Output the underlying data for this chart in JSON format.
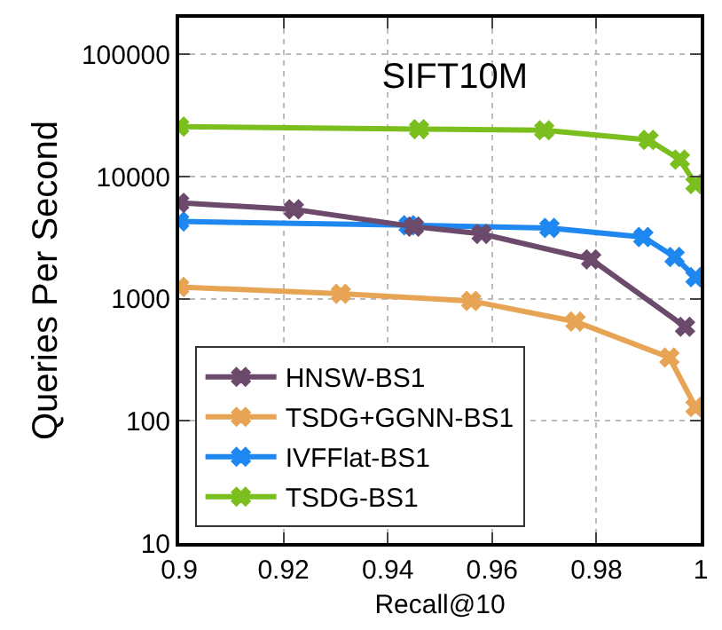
{
  "chart_data": {
    "type": "line",
    "title": "SIFT10M",
    "xlabel": "Recall@10",
    "ylabel": "Queries Per Second",
    "log": "y",
    "grid": true,
    "legend": "bottom left",
    "marker": "cross",
    "line_style": "solid",
    "xlim": [
      0.9,
      1
    ],
    "xticks": [
      0.9,
      0.92,
      0.94,
      0.96,
      0.98,
      1
    ],
    "ylim": [
      10,
      200000
    ],
    "yticks": [
      10,
      100,
      1000,
      10000,
      100000
    ],
    "series": [
      {
        "name": "HNSW-BS1",
        "color": "#6b4a6b",
        "x": [
          0.9,
          0.922,
          0.945,
          0.958,
          0.979,
          0.997
        ],
        "values": [
          6100,
          5400,
          3900,
          3400,
          2100,
          590
        ]
      },
      {
        "name": "TSDG+GGNN-BS1",
        "color": "#e8a455",
        "x": [
          0.9,
          0.931,
          0.956,
          0.976,
          0.994,
          0.999
        ],
        "values": [
          1250,
          1100,
          960,
          650,
          330,
          130
        ]
      },
      {
        "name": "IVFFlat-BS1",
        "color": "#1e88f0",
        "x": [
          0.9,
          0.944,
          0.971,
          0.989,
          0.995,
          0.999
        ],
        "values": [
          4300,
          4000,
          3800,
          3200,
          2200,
          1500
        ]
      },
      {
        "name": "TSDG-BS1",
        "color": "#7bbf1e",
        "x": [
          0.9,
          0.946,
          0.97,
          0.99,
          0.996,
          0.999
        ],
        "values": [
          25700,
          24500,
          24000,
          20000,
          13800,
          8700
        ]
      }
    ]
  }
}
